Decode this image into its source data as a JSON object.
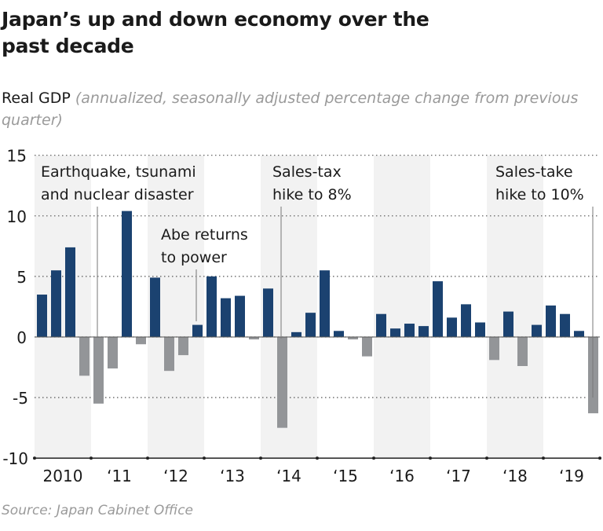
{
  "title": "Japan’s up and down economy over the past decade",
  "subtitle": {
    "label": "Real GDP",
    "note": "(annualized, seasonally adjusted percentage change from previous quarter)"
  },
  "source": "Source: Japan Cabinet Office",
  "colors": {
    "positive": "#1b4270",
    "negative": "#939598",
    "band": "#f2f2f2"
  },
  "chart_data": {
    "type": "bar",
    "title": "Japan’s up and down economy over the past decade",
    "ylabel": "Real GDP (annualized, seasonally adjusted percentage change from previous quarter)",
    "ylim": [
      -10,
      15
    ],
    "yticks": [
      15,
      10,
      5,
      0,
      -5,
      -10
    ],
    "grid": true,
    "year_labels": [
      "2010",
      "‘11",
      "‘12",
      "‘13",
      "‘14",
      "‘15",
      "‘16",
      "‘17",
      "‘18",
      "‘19"
    ],
    "categories": [
      "2010 Q1",
      "2010 Q2",
      "2010 Q3",
      "2010 Q4",
      "2011 Q1",
      "2011 Q2",
      "2011 Q3",
      "2011 Q4",
      "2012 Q1",
      "2012 Q2",
      "2012 Q3",
      "2012 Q4",
      "2013 Q1",
      "2013 Q2",
      "2013 Q3",
      "2013 Q4",
      "2014 Q1",
      "2014 Q2",
      "2014 Q3",
      "2014 Q4",
      "2015 Q1",
      "2015 Q2",
      "2015 Q3",
      "2015 Q4",
      "2016 Q1",
      "2016 Q2",
      "2016 Q3",
      "2016 Q4",
      "2017 Q1",
      "2017 Q2",
      "2017 Q3",
      "2017 Q4",
      "2018 Q1",
      "2018 Q2",
      "2018 Q3",
      "2018 Q4",
      "2019 Q1",
      "2019 Q2",
      "2019 Q3",
      "2019 Q4"
    ],
    "values": [
      3.5,
      5.5,
      7.4,
      -3.2,
      -5.5,
      -2.6,
      10.4,
      -0.6,
      4.9,
      -2.8,
      -1.5,
      1.0,
      5.0,
      3.2,
      3.4,
      -0.2,
      4.0,
      -7.5,
      0.4,
      2.0,
      5.5,
      0.5,
      -0.2,
      -1.6,
      1.9,
      0.7,
      1.1,
      0.9,
      4.6,
      1.6,
      2.7,
      1.2,
      -1.9,
      2.1,
      -2.4,
      1.0,
      2.6,
      1.9,
      0.5,
      -6.3
    ],
    "annotations": [
      {
        "lines": [
          "Earthquake, tsunami",
          "and nuclear disaster"
        ],
        "quarter": "2011 Q1"
      },
      {
        "lines": [
          "Abe returns",
          "to power"
        ],
        "quarter": "2012 Q4"
      },
      {
        "lines": [
          "Sales-tax",
          "hike to 8%"
        ],
        "quarter": "2014 Q2"
      },
      {
        "lines": [
          "Sales-take",
          "hike to 10%"
        ],
        "quarter": "2019 Q4"
      }
    ]
  }
}
